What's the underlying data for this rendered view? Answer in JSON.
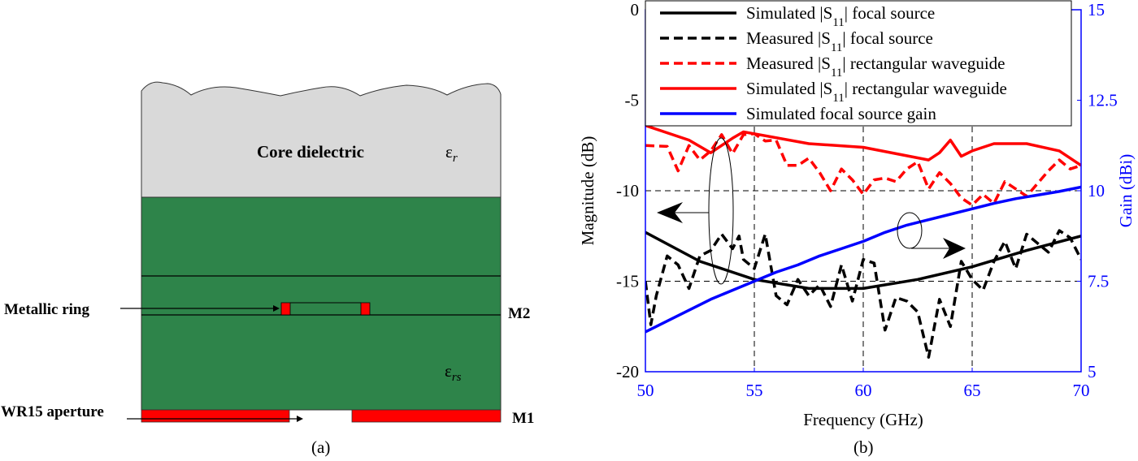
{
  "panel_a": {
    "caption": "(a)",
    "core_label": "Core dielectric",
    "core_eps": "ε",
    "core_eps_sub": "r",
    "substrate_eps": "ε",
    "substrate_eps_sub": "rs",
    "ring_label": "Metallic ring",
    "m2_label": "M2",
    "aperture_label": "WR15 aperture",
    "m1_label": "M1",
    "colors": {
      "core": "#d9d9d9",
      "substrate": "#2e844a",
      "metal": "#ff0000"
    }
  },
  "panel_b": {
    "caption": "(b)"
  },
  "chart_data": {
    "type": "line",
    "xlabel": "Frequency (GHz)",
    "ylabel": "Magnitude (dB)",
    "y2label": "Gain (dBi)",
    "xlim": [
      50,
      70
    ],
    "ylim": [
      -20,
      0
    ],
    "y2lim": [
      5,
      15
    ],
    "xticks": [
      "50",
      "55",
      "60",
      "65",
      "70"
    ],
    "yticks": [
      "0",
      "-5",
      "-10",
      "-15",
      "-20"
    ],
    "y2ticks": [
      "15",
      "12.5",
      "10",
      "7.5",
      "5"
    ],
    "grid": "dashed at 55, 60, 65 GHz and -10, -15 dB",
    "legend_placement": "top",
    "series": [
      {
        "name": "Simulated |S11| focal source",
        "legend_text": [
          "Simulated |S",
          "11",
          "| focal source"
        ],
        "axis": "left",
        "color": "#000000",
        "style": "solid",
        "x": [
          50,
          52.5,
          55,
          57.5,
          60,
          62.5,
          65,
          67.5,
          70
        ],
        "y": [
          -12.3,
          -13.9,
          -14.9,
          -15.4,
          -15.4,
          -14.9,
          -14.2,
          -13.3,
          -12.5
        ]
      },
      {
        "name": "Measured |S11| focal source",
        "legend_text": [
          "Measured |S",
          "11",
          "| focal source"
        ],
        "axis": "left",
        "color": "#000000",
        "style": "dashed",
        "x": [
          50,
          50.25,
          50.5,
          51,
          51.5,
          52,
          52.5,
          53,
          53.5,
          54,
          54.3,
          54.5,
          55,
          55.5,
          56,
          56.5,
          57,
          57.5,
          58,
          58.5,
          59,
          59.5,
          60,
          60.5,
          61,
          61.5,
          62,
          62.5,
          63,
          63.5,
          64,
          64.5,
          65,
          65.5,
          66,
          66.5,
          67,
          67.5,
          68,
          68.5,
          69,
          69.5,
          70
        ],
        "y": [
          -15.0,
          -17.4,
          -15.8,
          -13.6,
          -14.1,
          -15.4,
          -13.6,
          -13.3,
          -12.4,
          -13.2,
          -12.5,
          -13.8,
          -14.3,
          -12.4,
          -15.8,
          -16.3,
          -14.9,
          -15.8,
          -15.2,
          -16.4,
          -14.1,
          -16.1,
          -13.8,
          -14.0,
          -17.7,
          -15.9,
          -16.1,
          -16.7,
          -19.2,
          -16.0,
          -17.5,
          -13.9,
          -14.9,
          -15.5,
          -13.9,
          -12.8,
          -14.3,
          -12.4,
          -12.9,
          -13.4,
          -12.2,
          -12.6,
          -13.8
        ]
      },
      {
        "name": "Measured |S11| rectangular waveguide",
        "legend_text": [
          "Measured |S",
          "11",
          "| rectangular waveguide"
        ],
        "axis": "left",
        "color": "#ff0000",
        "style": "dashed",
        "x": [
          50,
          51,
          51.5,
          52,
          52.5,
          53,
          53.5,
          54,
          54.5,
          55,
          55.5,
          56,
          56.5,
          57,
          57.5,
          58,
          58.5,
          59,
          59.5,
          60,
          60.5,
          61,
          61.5,
          62,
          62.5,
          63,
          63.5,
          64,
          64.5,
          65,
          65.5,
          66,
          66.5,
          67,
          67.5,
          68,
          68.5,
          69,
          69.5,
          70
        ],
        "y": [
          -7.5,
          -7.55,
          -8.9,
          -7.5,
          -8.3,
          -7.8,
          -6.9,
          -7.95,
          -6.9,
          -6.85,
          -7.25,
          -7.2,
          -8.6,
          -8.6,
          -8.2,
          -9.0,
          -10.0,
          -8.8,
          -9.4,
          -10.2,
          -9.4,
          -9.3,
          -9.5,
          -8.8,
          -8.4,
          -9.9,
          -9.0,
          -9.6,
          -10.4,
          -10.8,
          -10.2,
          -10.7,
          -9.5,
          -9.9,
          -10.3,
          -9.6,
          -8.9,
          -8.3,
          -8.8,
          -8.6
        ]
      },
      {
        "name": "Simulated |S11| rectangular waveguide",
        "legend_text": [
          "Simulated |S",
          "11",
          "| rectangular waveguide"
        ],
        "axis": "left",
        "color": "#ff0000",
        "style": "solid",
        "x": [
          50,
          52,
          53,
          54,
          54.5,
          55,
          57.5,
          60,
          63,
          63.5,
          64,
          64.5,
          65,
          66,
          67.5,
          69,
          70
        ],
        "y": [
          -6.4,
          -7.2,
          -7.9,
          -7.1,
          -6.75,
          -6.85,
          -7.4,
          -7.6,
          -8.3,
          -7.9,
          -7.2,
          -8.1,
          -7.8,
          -7.4,
          -7.4,
          -7.8,
          -8.6
        ]
      },
      {
        "name": "Simulated focal source gain",
        "legend_text": [
          "Simulated focal source gain",
          "",
          ""
        ],
        "axis": "right",
        "color": "#0000ff",
        "style": "solid",
        "x": [
          50,
          51,
          52,
          53,
          54,
          55,
          56,
          57,
          58,
          59,
          60,
          61,
          62,
          63,
          64,
          65,
          66,
          67,
          68,
          69,
          70
        ],
        "y": [
          6.1,
          6.4,
          6.7,
          7.0,
          7.25,
          7.5,
          7.75,
          7.95,
          8.2,
          8.4,
          8.6,
          8.85,
          9.05,
          9.2,
          9.35,
          9.5,
          9.65,
          9.78,
          9.88,
          9.98,
          10.1
        ]
      }
    ]
  }
}
